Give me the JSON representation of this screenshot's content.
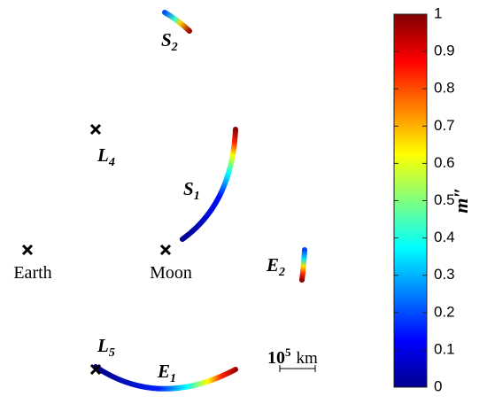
{
  "labels": [
    {
      "letter": "S",
      "sub": "2"
    },
    {
      "letter": "L",
      "sub": "4"
    },
    {
      "letter": "S",
      "sub": "1"
    },
    {
      "letter": "E",
      "sub": "2"
    },
    {
      "letter": "L",
      "sub": "5"
    },
    {
      "letter": "E",
      "sub": "1"
    }
  ],
  "bodies": [
    "Earth",
    "Moon"
  ],
  "scale": {
    "base": "10",
    "exp": "5",
    "unit": "km"
  },
  "colorbar": {
    "label": "m″",
    "lim": [
      0,
      1
    ],
    "ticks": [
      0,
      0.1,
      0.2,
      0.3,
      0.4,
      0.5,
      0.6,
      0.7,
      0.8,
      0.9,
      1
    ]
  }
}
